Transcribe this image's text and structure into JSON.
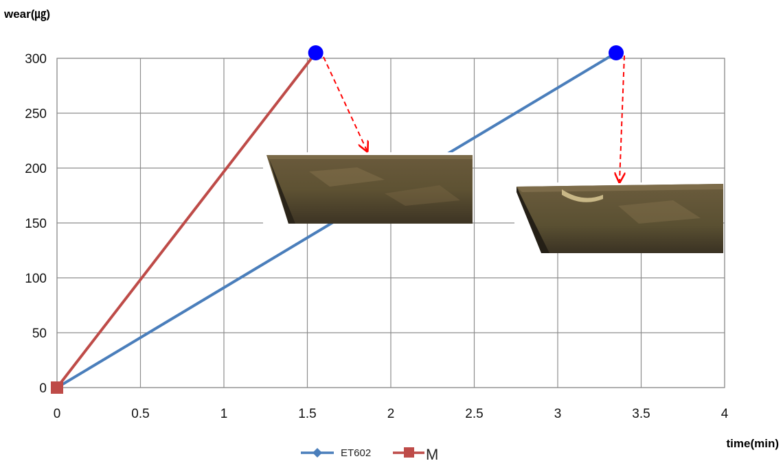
{
  "chart_data": {
    "type": "line",
    "xlabel": "time(min)",
    "ylabel": "wear(㎍)",
    "xlim": [
      0,
      4
    ],
    "ylim": [
      0,
      300
    ],
    "x_ticks": [
      "0",
      "0.5",
      "1",
      "1.5",
      "2",
      "2.5",
      "3",
      "3.5",
      "4"
    ],
    "y_ticks": [
      "0",
      "50",
      "100",
      "150",
      "200",
      "250",
      "300"
    ],
    "grid": true,
    "legend_position": "bottom",
    "series": [
      {
        "name": "ET602",
        "color": "#4a7ebb",
        "marker": "diamond",
        "x": [
          0,
          3.35
        ],
        "y": [
          0,
          305
        ]
      },
      {
        "name": "M",
        "color": "#be4b48",
        "marker": "square",
        "x": [
          0,
          1.55
        ],
        "y": [
          0,
          305
        ]
      }
    ],
    "highlight_points": [
      {
        "x": 1.55,
        "y": 305,
        "color": "#0000ff"
      },
      {
        "x": 3.35,
        "y": 305,
        "color": "#0000ff"
      }
    ]
  }
}
